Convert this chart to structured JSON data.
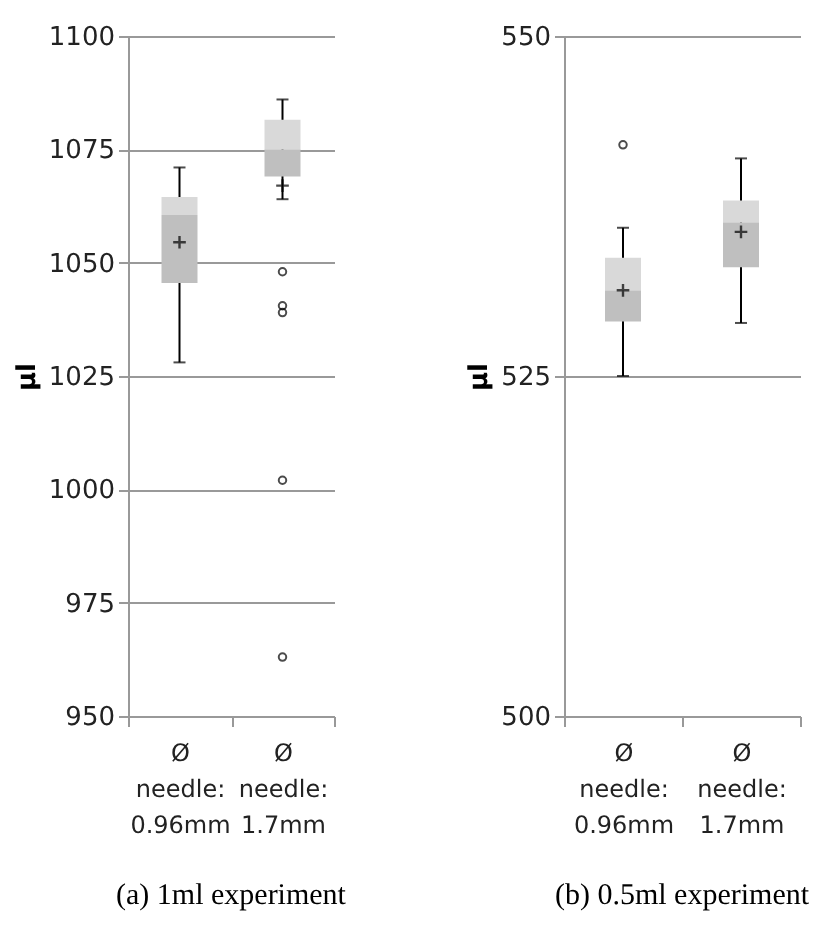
{
  "chart_data": [
    {
      "type": "box",
      "title": "(a) 1ml experiment",
      "ylabel": "µl",
      "categories": [
        "Ø needle: 0.96mm",
        "Ø needle: 1.7mm"
      ],
      "ylim": [
        950,
        1100
      ],
      "yticks": [
        950,
        975,
        1000,
        1025,
        1050,
        1075,
        1100
      ],
      "grid": "y",
      "boxes": [
        {
          "low": 1028,
          "q1": 1045.5,
          "median": 1060.5,
          "q3": 1064.5,
          "high": 1071,
          "mean": 1054.5
        },
        {
          "low": 1064,
          "q1": 1069,
          "median": 1075,
          "q3": 1081.5,
          "high": 1086,
          "mean": 1067,
          "outliers": [
            1048,
            1040.5,
            1039,
            1002,
            963
          ]
        }
      ]
    },
    {
      "type": "box",
      "title": "(b) 0.5ml experiment",
      "ylabel": "µl",
      "categories": [
        "Ø needle: 0.96mm",
        "Ø needle: 1.7mm"
      ],
      "ylim": [
        500,
        550
      ],
      "yticks": [
        500,
        525,
        550
      ],
      "grid": "y",
      "boxes": [
        {
          "low": 525,
          "q1": 529,
          "median": 531.3,
          "q3": 533.7,
          "high": 535.9,
          "mean": 531.3,
          "outliers": [
            542
          ]
        },
        {
          "low": 528.9,
          "q1": 533,
          "median": 536.3,
          "q3": 537.9,
          "high": 541,
          "mean": 535.6
        }
      ]
    }
  ]
}
